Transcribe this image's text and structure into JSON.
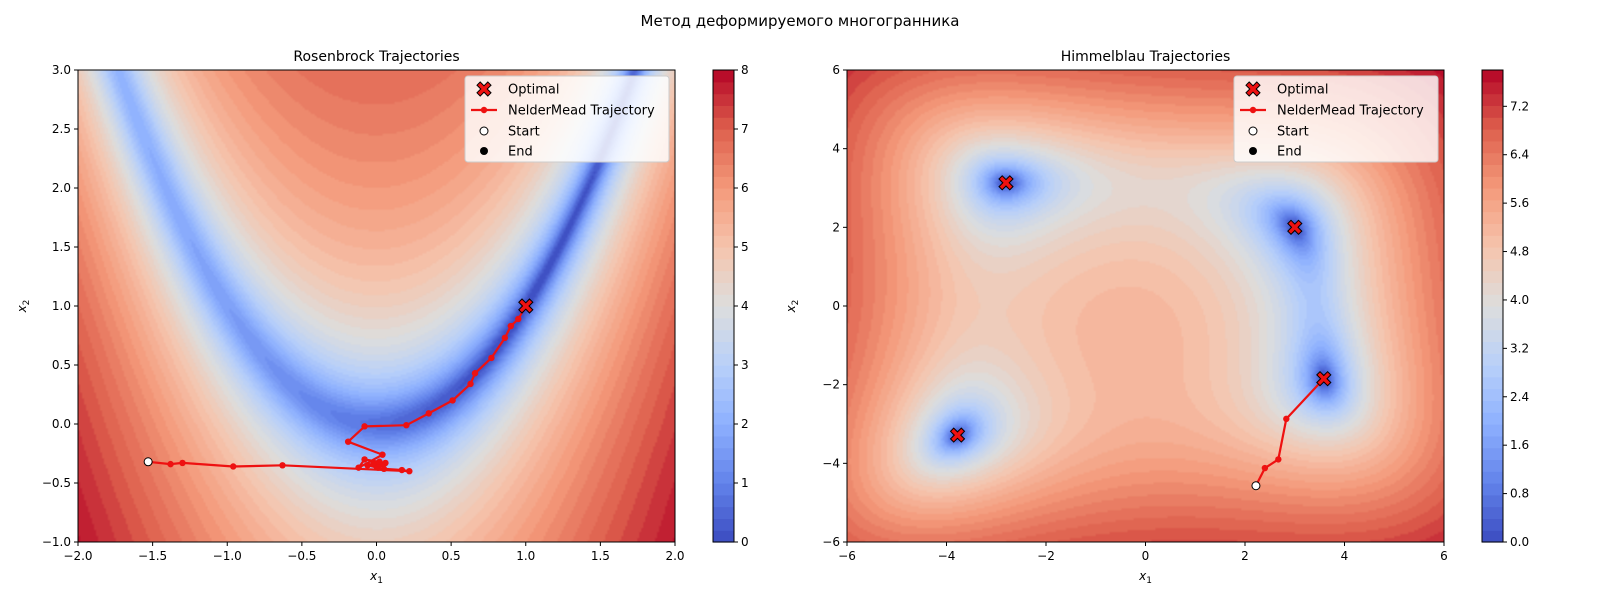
{
  "suptitle": "Метод деформируемого многогранника",
  "chart_data": [
    {
      "type": "contour",
      "title": "Rosenbrock Trajectories",
      "xlabel": "x",
      "xlabel_sub": "1",
      "ylabel": "x",
      "ylabel_sub": "2",
      "xlim": [
        -2.0,
        2.0
      ],
      "ylim": [
        -1.0,
        3.0
      ],
      "xticks": [
        -2.0,
        -1.5,
        -1.0,
        -0.5,
        0.0,
        0.5,
        1.0,
        1.5,
        2.0
      ],
      "yticks": [
        -1.0,
        -0.5,
        0.0,
        0.5,
        1.0,
        1.5,
        2.0,
        2.5,
        3.0
      ],
      "xtick_labels": [
        "−2.0",
        "−1.5",
        "−1.0",
        "−0.5",
        "0.0",
        "0.5",
        "1.0",
        "1.5",
        "2.0"
      ],
      "ytick_labels": [
        "−1.0",
        "−0.5",
        "0.0",
        "0.5",
        "1.0",
        "1.5",
        "2.0",
        "2.5",
        "3.0"
      ],
      "colorbar": {
        "min": 0,
        "max": 8,
        "ticks": [
          0,
          1,
          2,
          3,
          4,
          5,
          6,
          7,
          8
        ],
        "tick_labels": [
          "0",
          "1",
          "2",
          "3",
          "4",
          "5",
          "6",
          "7",
          "8"
        ],
        "colormap": "coolwarm"
      },
      "optimal": [
        [
          1.0,
          1.0
        ]
      ],
      "trajectory": [
        [
          -1.53,
          -0.32
        ],
        [
          -1.38,
          -0.34
        ],
        [
          -1.3,
          -0.33
        ],
        [
          -0.96,
          -0.36
        ],
        [
          -0.63,
          -0.35
        ],
        [
          0.22,
          -0.4
        ],
        [
          0.17,
          -0.39
        ],
        [
          0.05,
          -0.38
        ],
        [
          0.06,
          -0.33
        ],
        [
          0.0,
          -0.36
        ],
        [
          0.03,
          -0.34
        ],
        [
          -0.02,
          -0.33
        ],
        [
          0.01,
          -0.37
        ],
        [
          -0.06,
          -0.35
        ],
        [
          0.02,
          -0.32
        ],
        [
          -0.08,
          -0.3
        ],
        [
          -0.12,
          -0.37
        ],
        [
          0.04,
          -0.26
        ],
        [
          -0.19,
          -0.15
        ],
        [
          -0.08,
          -0.02
        ],
        [
          0.2,
          -0.01
        ],
        [
          0.35,
          0.09
        ],
        [
          0.51,
          0.2
        ],
        [
          0.63,
          0.34
        ],
        [
          0.66,
          0.43
        ],
        [
          0.77,
          0.56
        ],
        [
          0.86,
          0.73
        ],
        [
          0.9,
          0.83
        ],
        [
          0.95,
          0.89
        ],
        [
          1.0,
          1.0
        ]
      ],
      "start": [
        -1.53,
        -0.32
      ],
      "end": [
        1.0,
        1.0
      ],
      "legend": {
        "location": "upper right",
        "entries": [
          "Optimal",
          "NelderMead Trajectory",
          "Start",
          "End"
        ]
      }
    },
    {
      "type": "contour",
      "title": "Himmelblau Trajectories",
      "xlabel": "x",
      "xlabel_sub": "1",
      "ylabel": "x",
      "ylabel_sub": "2",
      "xlim": [
        -6,
        6
      ],
      "ylim": [
        -6,
        6
      ],
      "xticks": [
        -6,
        -4,
        -2,
        0,
        2,
        4,
        6
      ],
      "yticks": [
        -6,
        -4,
        -2,
        0,
        2,
        4,
        6
      ],
      "xtick_labels": [
        "−6",
        "−4",
        "−2",
        "0",
        "2",
        "4",
        "6"
      ],
      "ytick_labels": [
        "−6",
        "−4",
        "−2",
        "0",
        "2",
        "4",
        "6"
      ],
      "colorbar": {
        "min": 0,
        "max": 7.8,
        "ticks": [
          0.0,
          0.8,
          1.6,
          2.4,
          3.2,
          4.0,
          4.8,
          5.6,
          6.4,
          7.2
        ],
        "tick_labels": [
          "0.0",
          "0.8",
          "1.6",
          "2.4",
          "3.2",
          "4.0",
          "4.8",
          "5.6",
          "6.4",
          "7.2"
        ],
        "colormap": "coolwarm"
      },
      "optimal": [
        [
          3.0,
          2.0
        ],
        [
          -2.805,
          3.131
        ],
        [
          -3.779,
          -3.283
        ],
        [
          3.584,
          -1.848
        ]
      ],
      "trajectory": [
        [
          2.22,
          -4.57
        ],
        [
          2.4,
          -4.12
        ],
        [
          2.67,
          -3.9
        ],
        [
          2.83,
          -2.87
        ],
        [
          3.584,
          -1.848
        ]
      ],
      "start": [
        2.22,
        -4.57
      ],
      "end": [
        3.584,
        -1.848
      ],
      "legend": {
        "location": "upper right",
        "entries": [
          "Optimal",
          "NelderMead Trajectory",
          "Start",
          "End"
        ]
      }
    }
  ]
}
